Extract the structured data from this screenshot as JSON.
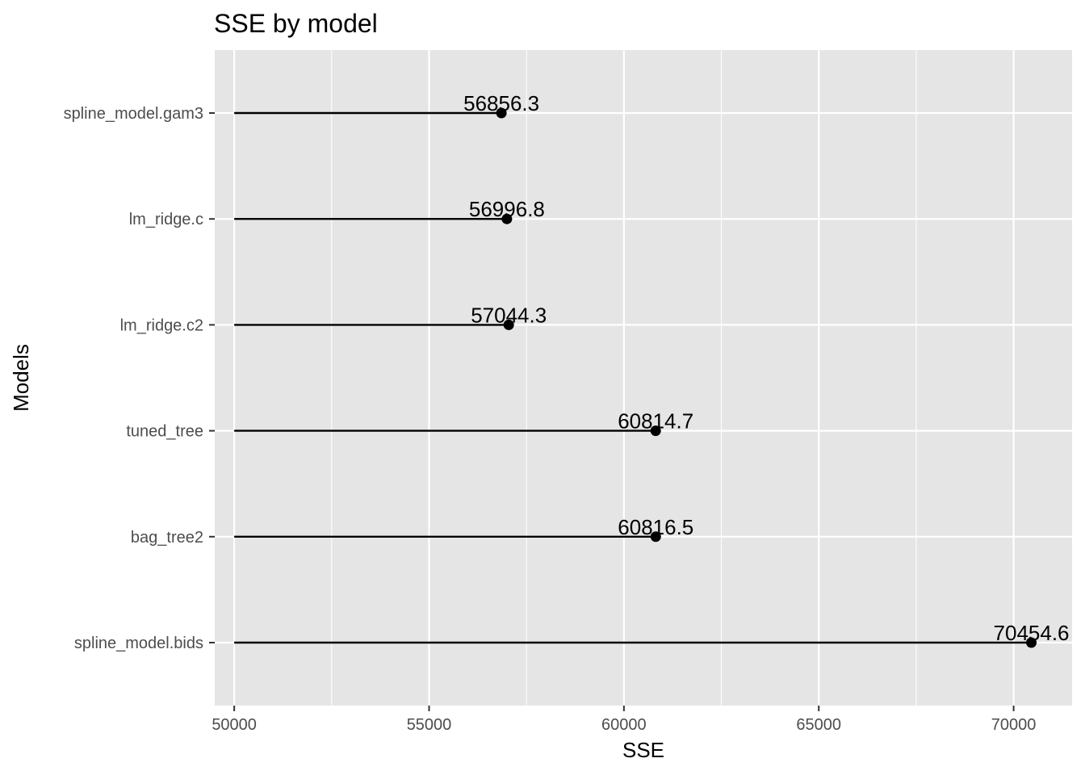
{
  "chart_data": {
    "type": "lollipop",
    "title": "SSE by model",
    "xlabel": "SSE",
    "ylabel": "Models",
    "categories": [
      "spline_model.gam3",
      "lm_ridge.c",
      "lm_ridge.c2",
      "tuned_tree",
      "bag_tree2",
      "spline_model.bids"
    ],
    "values": [
      56856.3,
      56996.8,
      57044.3,
      60814.7,
      60816.5,
      70454.6
    ],
    "value_labels": [
      "56856.3",
      "56996.8",
      "57044.3",
      "60814.7",
      "60816.5",
      "70454.6"
    ],
    "baseline": 50000,
    "xlim": [
      49500,
      71500
    ],
    "x_ticks": [
      50000,
      55000,
      60000,
      65000,
      70000
    ],
    "x_tick_labels": [
      "50000",
      "55000",
      "60000",
      "65000",
      "70000"
    ],
    "grid": true,
    "colors": {
      "panel": "#e5e5e5",
      "grid": "#ffffff",
      "mark": "#000000"
    }
  }
}
